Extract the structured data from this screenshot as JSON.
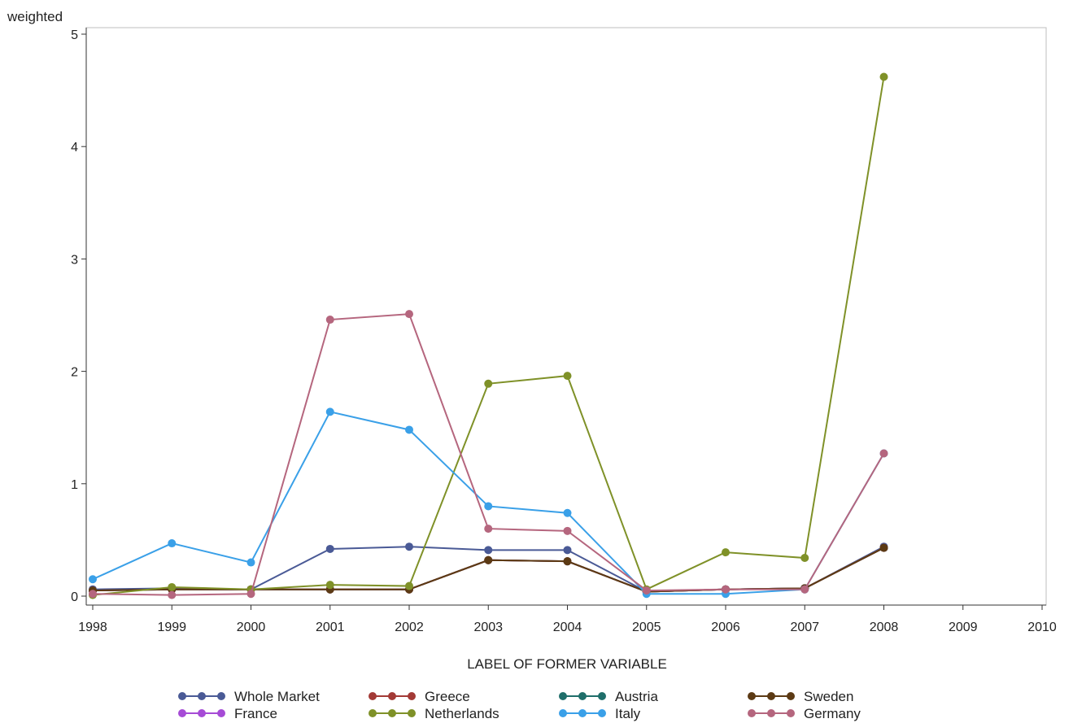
{
  "chart_data": {
    "type": "line",
    "title": "",
    "xlabel": "LABEL OF FORMER VARIABLE",
    "ylabel": "weighted",
    "x": [
      "1998",
      "1999",
      "2000",
      "2001",
      "2002",
      "2003",
      "2004",
      "2005",
      "2006",
      "2007",
      "2008",
      "2009",
      "2010"
    ],
    "x_tick_labels": [
      "1998",
      "1999",
      "2000",
      "2001",
      "2002",
      "2003",
      "2004",
      "2005",
      "2006",
      "2007",
      "2008",
      "2009",
      "2010"
    ],
    "y_tick_labels": [
      "0",
      "1",
      "2",
      "3",
      "4",
      "5"
    ],
    "ylim": [
      -0.08,
      5.0
    ],
    "xlim": [
      1998,
      2010
    ],
    "grid": false,
    "legend_position": "bottom",
    "series": [
      {
        "name": "Whole Market",
        "color": "#4a5a96",
        "x": [
          1998,
          1999,
          2000,
          2001,
          2002,
          2003,
          2004,
          2005,
          2006,
          2007,
          2008
        ],
        "values": [
          0.06,
          0.07,
          0.06,
          0.42,
          0.44,
          0.41,
          0.41,
          0.04,
          0.06,
          0.07,
          0.44
        ]
      },
      {
        "name": "Greece",
        "color": "#a33a36",
        "x": [
          1998,
          1999,
          2000,
          2001,
          2002,
          2003,
          2004,
          2005,
          2006,
          2007,
          2008
        ],
        "values": [
          0.05,
          0.06,
          0.06,
          0.06,
          0.06,
          0.32,
          0.31,
          0.04,
          0.06,
          0.07,
          0.43
        ]
      },
      {
        "name": "Austria",
        "color": "#1f6e6a",
        "x": [
          1998,
          1999,
          2000,
          2001,
          2002,
          2003,
          2004,
          2005,
          2006,
          2007,
          2008
        ],
        "values": [
          0.05,
          0.06,
          0.06,
          0.06,
          0.06,
          0.32,
          0.31,
          0.04,
          0.06,
          0.07,
          0.43
        ]
      },
      {
        "name": "Sweden",
        "color": "#5c3a14",
        "x": [
          1998,
          1999,
          2000,
          2001,
          2002,
          2003,
          2004,
          2005,
          2006,
          2007,
          2008
        ],
        "values": [
          0.05,
          0.06,
          0.06,
          0.06,
          0.06,
          0.32,
          0.31,
          0.04,
          0.06,
          0.07,
          0.43
        ]
      },
      {
        "name": "France",
        "color": "#a64bd6",
        "x": [
          1998,
          1999,
          2000,
          2001,
          2002,
          2003,
          2004,
          2005,
          2006,
          2007,
          2008
        ],
        "values": [
          0.05,
          0.06,
          0.06,
          0.06,
          0.06,
          0.32,
          0.31,
          0.04,
          0.06,
          0.07,
          0.43
        ]
      },
      {
        "name": "Netherlands",
        "color": "#7f9128",
        "x": [
          1998,
          1999,
          2000,
          2001,
          2002,
          2003,
          2004,
          2005,
          2006,
          2007,
          2008
        ],
        "values": [
          0.01,
          0.08,
          0.06,
          0.1,
          0.09,
          1.89,
          1.96,
          0.06,
          0.39,
          0.34,
          4.62
        ]
      },
      {
        "name": "Italy",
        "color": "#3aa0e8",
        "x": [
          1998,
          1999,
          2000,
          2001,
          2002,
          2003,
          2004,
          2005,
          2006,
          2007,
          2008
        ],
        "values": [
          0.15,
          0.47,
          0.3,
          1.64,
          1.48,
          0.8,
          0.74,
          0.02,
          0.02,
          0.06,
          1.27
        ]
      },
      {
        "name": "Germany",
        "color": "#b5667e",
        "x": [
          1998,
          1999,
          2000,
          2001,
          2002,
          2003,
          2004,
          2005,
          2006,
          2007,
          2008
        ],
        "values": [
          0.02,
          0.01,
          0.02,
          2.46,
          2.51,
          0.6,
          0.58,
          0.05,
          0.06,
          0.06,
          1.27
        ]
      }
    ]
  }
}
